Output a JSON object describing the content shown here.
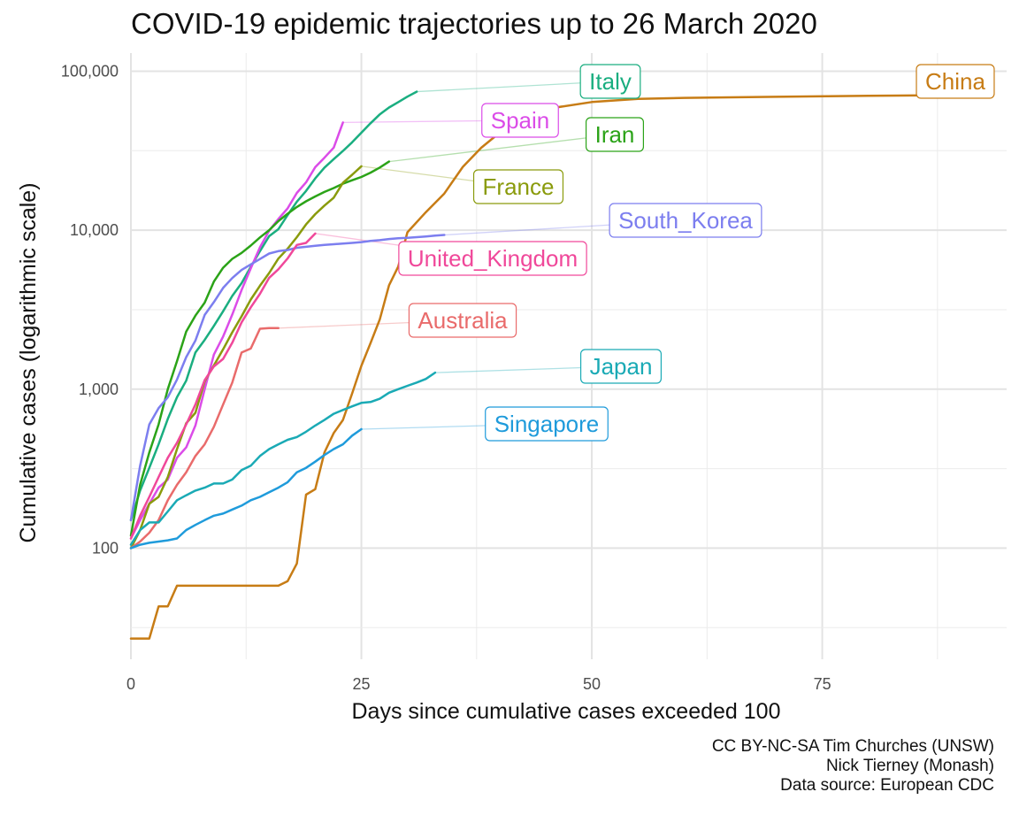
{
  "chart_data": {
    "type": "line",
    "title": "COVID-19 epidemic trajectories up to 26 March 2020",
    "xlabel": "Days since cumulative cases exceeded 100",
    "ylabel": "Cumulative cases (logarithmic scale)",
    "y_scale": "log10",
    "xlim": [
      0,
      95
    ],
    "ylim": [
      20,
      130000
    ],
    "x_ticks": [
      0,
      25,
      50,
      75
    ],
    "x_tick_labels": [
      "0",
      "25",
      "50",
      "75"
    ],
    "y_ticks": [
      100,
      1000,
      10000,
      100000
    ],
    "y_tick_labels": [
      "100",
      "1,000",
      "10,000",
      "100,000"
    ],
    "grid": true,
    "legend": "none (direct labels)",
    "series": [
      {
        "name": "China",
        "color": "#C77C15",
        "x": [
          0,
          1,
          2,
          3,
          4,
          5,
          6,
          8,
          10,
          12,
          14,
          16,
          17,
          18,
          19,
          20,
          21,
          22,
          23,
          24,
          25,
          26,
          27,
          28,
          29,
          30,
          32,
          34,
          36,
          38,
          40,
          43,
          46,
          50,
          55,
          60,
          70,
          80,
          92
        ],
        "y": [
          27,
          27,
          27,
          43,
          43,
          58,
          58,
          58,
          58,
          58,
          58,
          58,
          62,
          80,
          217,
          235,
          400,
          530,
          640,
          940,
          1400,
          1950,
          2750,
          4500,
          5900,
          9700,
          13000,
          17000,
          25000,
          33000,
          41000,
          51000,
          59000,
          64000,
          67000,
          68000,
          69000,
          70000,
          71000
        ]
      },
      {
        "name": "Italy",
        "color": "#1AAE80",
        "x": [
          0,
          1,
          2,
          3,
          4,
          5,
          6,
          7,
          8,
          9,
          10,
          11,
          12,
          13,
          14,
          15,
          16,
          17,
          18,
          19,
          20,
          21,
          22,
          23,
          24,
          25,
          26,
          27,
          28,
          29,
          30,
          31
        ],
        "y": [
          150,
          230,
          320,
          450,
          650,
          890,
          1130,
          1700,
          2040,
          2500,
          3090,
          3860,
          4640,
          5880,
          7380,
          9170,
          10150,
          12460,
          15110,
          17660,
          21160,
          24750,
          27980,
          31510,
          35710,
          41040,
          47020,
          53580,
          59140,
          63930,
          69180,
          74390
        ]
      },
      {
        "name": "Spain",
        "color": "#DB4CE8",
        "x": [
          0,
          1,
          2,
          3,
          4,
          5,
          6,
          7,
          8,
          9,
          10,
          11,
          12,
          13,
          14,
          15,
          16,
          17,
          18,
          19,
          20,
          21,
          22,
          23
        ],
        "y": [
          115,
          150,
          190,
          240,
          270,
          370,
          430,
          590,
          1000,
          1650,
          2140,
          2950,
          4200,
          5750,
          7800,
          9940,
          11750,
          13720,
          17150,
          19980,
          24930,
          28570,
          33090,
          47600
        ]
      },
      {
        "name": "Iran",
        "color": "#2BA318",
        "x": [
          0,
          1,
          2,
          3,
          4,
          5,
          6,
          7,
          8,
          9,
          10,
          11,
          12,
          13,
          14,
          15,
          16,
          17,
          18,
          19,
          20,
          21,
          22,
          23,
          24,
          25,
          26,
          27,
          28
        ],
        "y": [
          120,
          250,
          400,
          600,
          1000,
          1500,
          2300,
          2900,
          3500,
          4750,
          5800,
          6600,
          7200,
          8000,
          9000,
          10000,
          11400,
          12700,
          14000,
          15200,
          16300,
          17400,
          18400,
          19600,
          20600,
          21600,
          23000,
          24800,
          27000
        ]
      },
      {
        "name": "France",
        "color": "#8A9B0C",
        "x": [
          0,
          1,
          2,
          3,
          4,
          5,
          6,
          7,
          8,
          9,
          10,
          11,
          12,
          13,
          14,
          15,
          16,
          17,
          18,
          19,
          20,
          21,
          22,
          23,
          24,
          25
        ],
        "y": [
          100,
          130,
          190,
          210,
          280,
          420,
          610,
          710,
          1120,
          1410,
          1780,
          2280,
          2870,
          3660,
          4470,
          5380,
          6630,
          7650,
          9040,
          10870,
          12610,
          14280,
          16010,
          19860,
          22300,
          25230
        ]
      },
      {
        "name": "South_Korea",
        "color": "#7C7EEF",
        "x": [
          0,
          1,
          2,
          3,
          4,
          5,
          6,
          7,
          8,
          9,
          10,
          11,
          12,
          13,
          14,
          15,
          16,
          17,
          18,
          19,
          20,
          21,
          22,
          23,
          24,
          25,
          26,
          27,
          28,
          29,
          30,
          31,
          32,
          33,
          34
        ],
        "y": [
          150,
          330,
          600,
          760,
          890,
          1150,
          1590,
          2020,
          2930,
          3530,
          4330,
          5000,
          5620,
          6090,
          6590,
          7130,
          7380,
          7510,
          7750,
          7860,
          7980,
          8090,
          8160,
          8240,
          8320,
          8410,
          8560,
          8650,
          8800,
          8900,
          8960,
          9040,
          9130,
          9240,
          9330
        ]
      },
      {
        "name": "United_Kingdom",
        "color": "#F0489A",
        "x": [
          0,
          1,
          2,
          3,
          4,
          5,
          6,
          7,
          8,
          9,
          10,
          11,
          12,
          13,
          14,
          15,
          16,
          17,
          18,
          19,
          20
        ],
        "y": [
          115,
          160,
          210,
          280,
          370,
          460,
          600,
          800,
          1140,
          1390,
          1550,
          1960,
          2630,
          3270,
          3980,
          5020,
          5680,
          6650,
          8080,
          8320,
          9530
        ]
      },
      {
        "name": "Australia",
        "color": "#E96B6B",
        "x": [
          0,
          1,
          2,
          3,
          4,
          5,
          6,
          7,
          8,
          9,
          10,
          11,
          12,
          13,
          14,
          15,
          16
        ],
        "y": [
          100,
          110,
          125,
          150,
          200,
          250,
          300,
          380,
          450,
          580,
          800,
          1100,
          1700,
          1800,
          2400,
          2420,
          2420
        ]
      },
      {
        "name": "Japan",
        "color": "#1AAAB5",
        "x": [
          0,
          1,
          2,
          3,
          4,
          5,
          6,
          7,
          8,
          9,
          10,
          11,
          12,
          13,
          14,
          15,
          16,
          17,
          18,
          19,
          20,
          21,
          22,
          23,
          24,
          25,
          26,
          27,
          28,
          29,
          30,
          31,
          32,
          33
        ],
        "y": [
          105,
          130,
          145,
          145,
          170,
          200,
          215,
          230,
          240,
          255,
          255,
          270,
          310,
          330,
          380,
          420,
          450,
          480,
          500,
          540,
          590,
          640,
          700,
          740,
          780,
          820,
          830,
          870,
          950,
          1000,
          1050,
          1100,
          1160,
          1270
        ]
      },
      {
        "name": "Singapore",
        "color": "#1F9BDB",
        "x": [
          0,
          1,
          2,
          3,
          4,
          5,
          6,
          7,
          8,
          9,
          10,
          11,
          12,
          13,
          14,
          15,
          16,
          17,
          18,
          19,
          20,
          21,
          22,
          23,
          24,
          25
        ],
        "y": [
          100,
          105,
          108,
          110,
          112,
          115,
          130,
          140,
          150,
          160,
          165,
          175,
          185,
          200,
          210,
          225,
          240,
          260,
          300,
          320,
          350,
          385,
          420,
          450,
          510,
          560
        ]
      }
    ],
    "annotations": {
      "caption": [
        "CC BY-NC-SA Tim Churches (UNSW)",
        "Nick Tierney (Monash)",
        "Data source: European CDC"
      ]
    }
  }
}
